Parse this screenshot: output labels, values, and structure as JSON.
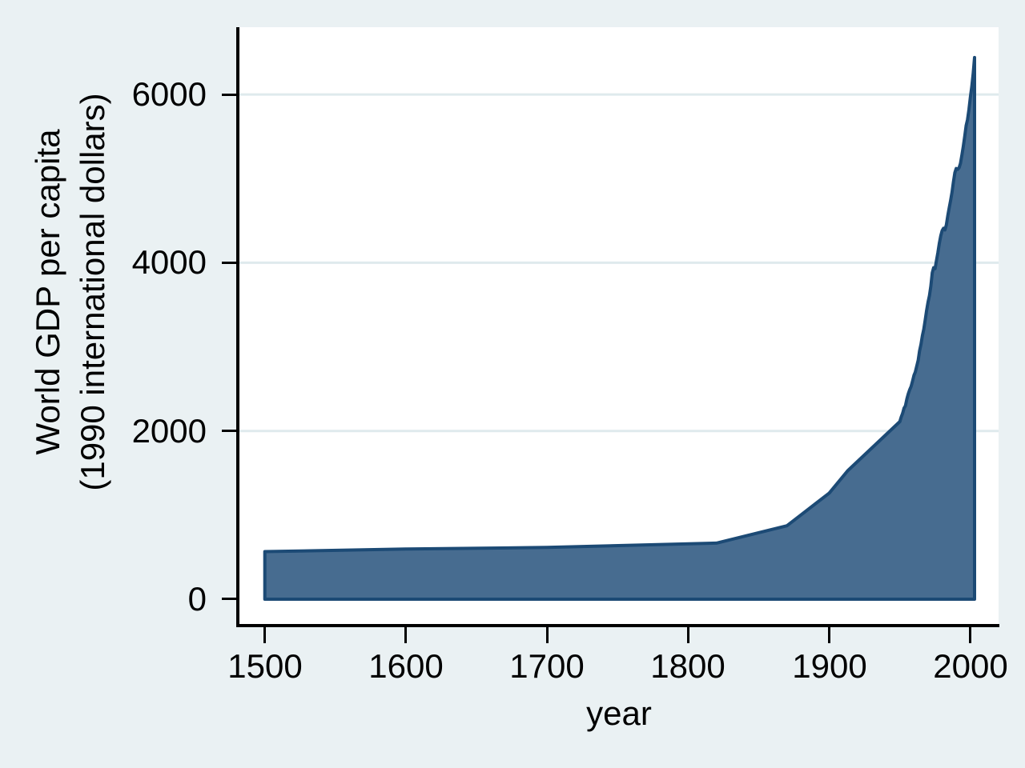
{
  "colors": {
    "page_background": "#eaf1f3",
    "plot_background": "#ffffff",
    "gridline": "#dfeaed",
    "axis": "#000000",
    "text": "#000000",
    "area_fill": "#476c90",
    "area_stroke": "#1c4a75"
  },
  "y_axis": {
    "title_line1": "World GDP per capita",
    "title_line2": "(1990 international dollars)",
    "tick_labels": [
      "0",
      "2000",
      "4000",
      "6000"
    ]
  },
  "x_axis": {
    "title": "year",
    "tick_labels": [
      "1500",
      "1600",
      "1700",
      "1800",
      "1900",
      "2000"
    ]
  },
  "chart_data": {
    "type": "area",
    "title": "",
    "xlabel": "year",
    "ylabel": "World GDP per capita (1990 international dollars)",
    "series_name": "World GDP per capita",
    "xlim": [
      1482,
      2020
    ],
    "ylim": [
      -295,
      6800
    ],
    "x_ticks": [
      1500,
      1600,
      1700,
      1800,
      1900,
      2000
    ],
    "y_ticks": [
      0,
      2000,
      4000,
      6000
    ],
    "grid_y": [
      2000,
      4000,
      6000
    ],
    "grid": "horizontal-only",
    "legend": "none",
    "baseline": 0,
    "points": [
      [
        1500,
        566
      ],
      [
        1600,
        596
      ],
      [
        1700,
        615
      ],
      [
        1820,
        667
      ],
      [
        1870,
        873
      ],
      [
        1900,
        1262
      ],
      [
        1913,
        1526
      ],
      [
        1950,
        2111
      ],
      [
        1951,
        2165
      ],
      [
        1952,
        2210
      ],
      [
        1953,
        2270
      ],
      [
        1954,
        2300
      ],
      [
        1955,
        2380
      ],
      [
        1956,
        2440
      ],
      [
        1957,
        2490
      ],
      [
        1958,
        2530
      ],
      [
        1959,
        2590
      ],
      [
        1960,
        2660
      ],
      [
        1961,
        2700
      ],
      [
        1962,
        2770
      ],
      [
        1963,
        2840
      ],
      [
        1964,
        2950
      ],
      [
        1965,
        3030
      ],
      [
        1966,
        3130
      ],
      [
        1967,
        3210
      ],
      [
        1968,
        3320
      ],
      [
        1969,
        3430
      ],
      [
        1970,
        3530
      ],
      [
        1971,
        3610
      ],
      [
        1972,
        3720
      ],
      [
        1973,
        3880
      ],
      [
        1974,
        3940
      ],
      [
        1975,
        3930
      ],
      [
        1976,
        4030
      ],
      [
        1977,
        4120
      ],
      [
        1978,
        4230
      ],
      [
        1979,
        4320
      ],
      [
        1980,
        4380
      ],
      [
        1981,
        4410
      ],
      [
        1982,
        4390
      ],
      [
        1983,
        4450
      ],
      [
        1984,
        4560
      ],
      [
        1985,
        4650
      ],
      [
        1986,
        4740
      ],
      [
        1987,
        4840
      ],
      [
        1988,
        4960
      ],
      [
        1989,
        5070
      ],
      [
        1990,
        5120
      ],
      [
        1991,
        5110
      ],
      [
        1992,
        5130
      ],
      [
        1993,
        5180
      ],
      [
        1994,
        5280
      ],
      [
        1995,
        5380
      ],
      [
        1996,
        5500
      ],
      [
        1997,
        5630
      ],
      [
        1998,
        5700
      ],
      [
        1999,
        5820
      ],
      [
        2000,
        5970
      ],
      [
        2001,
        6090
      ],
      [
        2002,
        6250
      ],
      [
        2003,
        6440
      ]
    ]
  }
}
